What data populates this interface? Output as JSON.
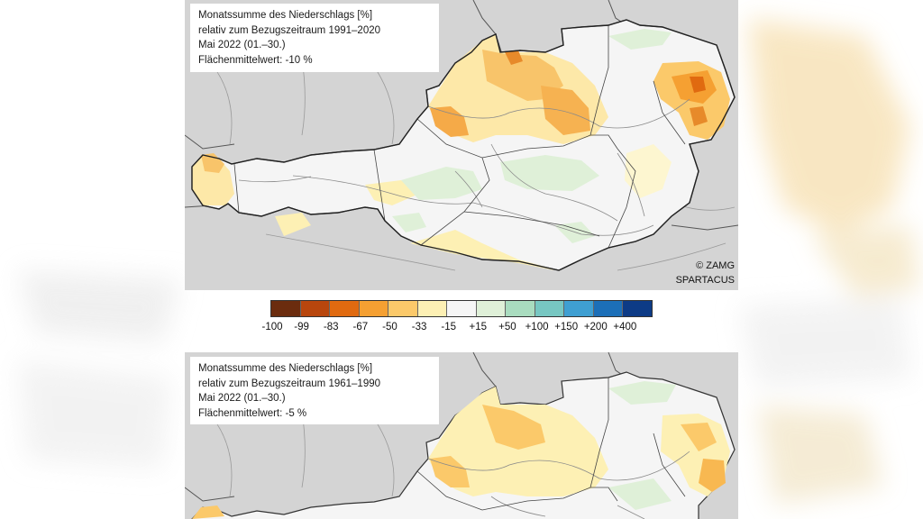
{
  "maps": [
    {
      "title": "Monatssumme des Niederschlags [%]",
      "reference": "relativ zum Bezugszeitraum 1991–2020",
      "period": "Mai 2022 (01.–30.)",
      "mean": "Flächenmittelwert: -10 %"
    },
    {
      "title": "Monatssumme des Niederschlags [%]",
      "reference": "relativ zum Bezugszeitraum 1961–1990",
      "period": "Mai 2022 (01.–30.)",
      "mean": "Flächenmittelwert: -5 %"
    }
  ],
  "credit": {
    "copyright": "© ZAMG",
    "source": "SPARTACUS"
  },
  "legend": {
    "colors": [
      "#6b2c0e",
      "#b8460d",
      "#e06a10",
      "#f5a032",
      "#fbc96a",
      "#fdf0b4",
      "#f6f6f6",
      "#dff0d8",
      "#a9dcbf",
      "#77c7c2",
      "#3f9fd2",
      "#1c6fb8",
      "#0d3b86"
    ],
    "labels": [
      "-100",
      "-99",
      "-83",
      "-67",
      "-50",
      "-33",
      "-15",
      "+15",
      "+50",
      "+100",
      "+150",
      "+200",
      "+400"
    ]
  },
  "colors": {
    "neighbor": "#d4d4d4",
    "austria_base": "#f5f5f5",
    "border": "#333333",
    "river": "#8a8a8a"
  }
}
